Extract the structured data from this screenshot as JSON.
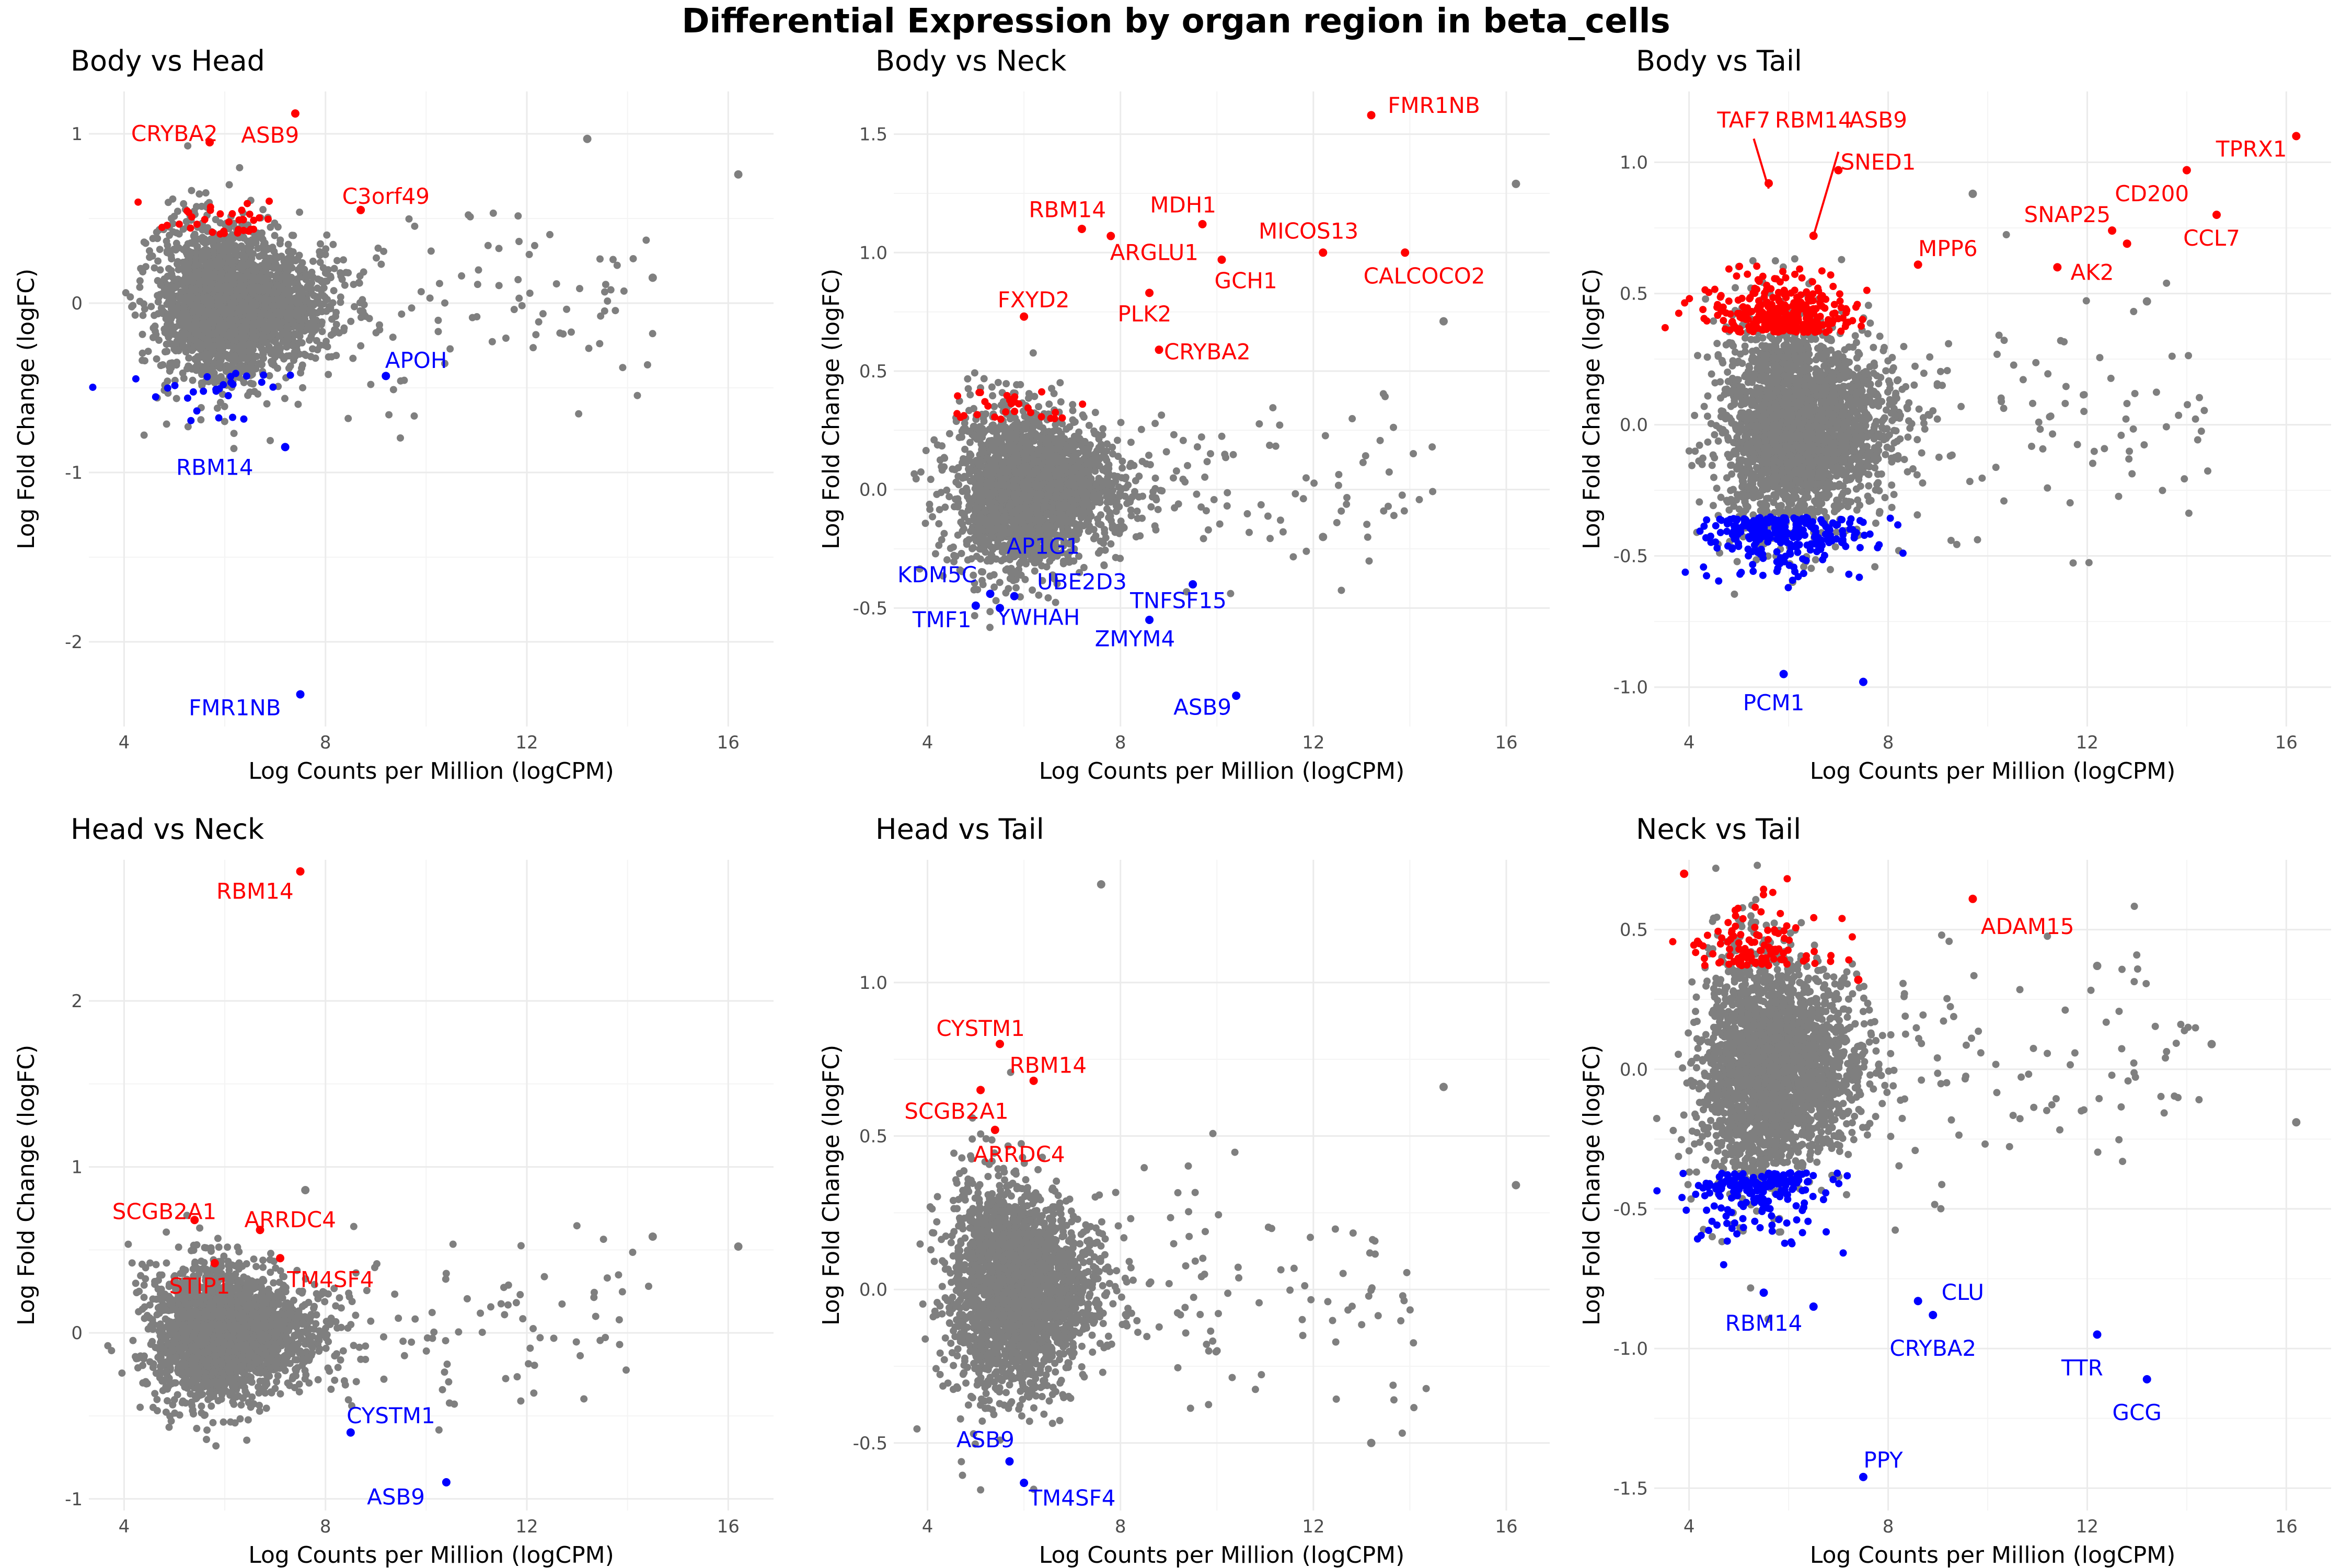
{
  "title": "Differential Expression by organ region in beta_cells",
  "colors": {
    "up": "#ff0000",
    "down": "#0000ff",
    "ns": "#7f7f7f",
    "grid": "#ebebeb"
  },
  "chart_data": [
    {
      "type": "scatter",
      "title": "Body vs Head",
      "xlabel": "Log Counts per Million (logCPM)",
      "ylabel": "Log Fold Change (logFC)",
      "xlim": [
        3.3,
        16.9
      ],
      "ylim": [
        -2.5,
        1.25
      ],
      "xticks": [
        4,
        8,
        12,
        16
      ],
      "yticks": [
        -2,
        -1,
        0,
        1
      ],
      "bulk": {
        "x_center": 5.9,
        "x_spread": 1.0,
        "y_center": 0.0,
        "y_spread": 0.22
      },
      "up_count": 35,
      "down_count": 28,
      "points": [
        {
          "x": 7.4,
          "y": 1.12,
          "group": "up"
        },
        {
          "x": 5.7,
          "y": 0.95,
          "group": "up"
        },
        {
          "x": 8.7,
          "y": 0.55,
          "group": "up"
        },
        {
          "x": 13.2,
          "y": 0.97,
          "group": "ns"
        },
        {
          "x": 16.2,
          "y": 0.76,
          "group": "ns"
        },
        {
          "x": 14.5,
          "y": 0.15,
          "group": "ns"
        },
        {
          "x": 9.2,
          "y": -0.43,
          "group": "down"
        },
        {
          "x": 7.2,
          "y": -0.85,
          "group": "down"
        },
        {
          "x": 7.5,
          "y": -2.31,
          "group": "down"
        }
      ],
      "labels": [
        {
          "text": "CRYBA2",
          "x": 5.0,
          "y": 1.0,
          "group": "up"
        },
        {
          "text": "ASB9",
          "x": 6.9,
          "y": 0.99,
          "group": "up"
        },
        {
          "text": "C3orf49",
          "x": 9.2,
          "y": 0.63,
          "group": "up"
        },
        {
          "text": "APOH",
          "x": 9.8,
          "y": -0.34,
          "group": "down"
        },
        {
          "text": "RBM14",
          "x": 5.8,
          "y": -0.97,
          "group": "down"
        },
        {
          "text": "FMR1NB",
          "x": 6.2,
          "y": -2.39,
          "group": "down"
        }
      ]
    },
    {
      "type": "scatter",
      "title": "Body vs Neck",
      "xlabel": "Log Counts per Million (logCPM)",
      "ylabel": "Log Fold Change (logFC)",
      "xlim": [
        3.3,
        16.9
      ],
      "ylim": [
        -1.0,
        1.68
      ],
      "xticks": [
        4,
        8,
        12,
        16
      ],
      "yticks": [
        -0.5,
        0.0,
        0.5,
        1.0,
        1.5
      ],
      "bulk": {
        "x_center": 5.8,
        "x_spread": 1.0,
        "y_center": 0.0,
        "y_spread": 0.16
      },
      "up_count": 30,
      "down_count": 0,
      "points": [
        {
          "x": 13.2,
          "y": 1.58,
          "group": "up"
        },
        {
          "x": 7.2,
          "y": 1.1,
          "group": "up"
        },
        {
          "x": 9.7,
          "y": 1.12,
          "group": "up"
        },
        {
          "x": 7.8,
          "y": 1.07,
          "group": "up"
        },
        {
          "x": 10.1,
          "y": 0.97,
          "group": "up"
        },
        {
          "x": 12.2,
          "y": 1.0,
          "group": "up"
        },
        {
          "x": 13.9,
          "y": 1.0,
          "group": "up"
        },
        {
          "x": 6.0,
          "y": 0.73,
          "group": "up"
        },
        {
          "x": 8.6,
          "y": 0.83,
          "group": "up"
        },
        {
          "x": 8.8,
          "y": 0.59,
          "group": "up"
        },
        {
          "x": 16.2,
          "y": 1.29,
          "group": "ns"
        },
        {
          "x": 14.7,
          "y": 0.71,
          "group": "ns"
        },
        {
          "x": 12.2,
          "y": -0.2,
          "group": "ns"
        },
        {
          "x": 5.3,
          "y": -0.44,
          "group": "down"
        },
        {
          "x": 5.8,
          "y": -0.45,
          "group": "down"
        },
        {
          "x": 5.0,
          "y": -0.49,
          "group": "down"
        },
        {
          "x": 5.5,
          "y": -0.5,
          "group": "down"
        },
        {
          "x": 9.5,
          "y": -0.4,
          "group": "down"
        },
        {
          "x": 8.6,
          "y": -0.55,
          "group": "down"
        },
        {
          "x": 10.4,
          "y": -0.87,
          "group": "down"
        }
      ],
      "labels": [
        {
          "text": "FMR1NB",
          "x": 14.5,
          "y": 1.62,
          "group": "up"
        },
        {
          "text": "RBM14",
          "x": 6.9,
          "y": 1.18,
          "group": "up"
        },
        {
          "text": "MDH1",
          "x": 9.3,
          "y": 1.2,
          "group": "up"
        },
        {
          "text": "MICOS13",
          "x": 11.9,
          "y": 1.09,
          "group": "up"
        },
        {
          "text": "ARGLU1",
          "x": 8.7,
          "y": 1.0,
          "group": "up"
        },
        {
          "text": "GCH1",
          "x": 10.6,
          "y": 0.88,
          "group": "up"
        },
        {
          "text": "CALCOCO2",
          "x": 14.3,
          "y": 0.9,
          "group": "up"
        },
        {
          "text": "FXYD2",
          "x": 6.2,
          "y": 0.8,
          "group": "up"
        },
        {
          "text": "PLK2",
          "x": 8.5,
          "y": 0.74,
          "group": "up"
        },
        {
          "text": "CRYBA2",
          "x": 9.8,
          "y": 0.58,
          "group": "up"
        },
        {
          "text": "AP1G1",
          "x": 6.4,
          "y": -0.24,
          "group": "down"
        },
        {
          "text": "KDM5C",
          "x": 4.2,
          "y": -0.36,
          "group": "down"
        },
        {
          "text": "UBE2D3",
          "x": 7.2,
          "y": -0.39,
          "group": "down"
        },
        {
          "text": "TNFSF15",
          "x": 9.2,
          "y": -0.47,
          "group": "down"
        },
        {
          "text": "TMF1",
          "x": 4.3,
          "y": -0.55,
          "group": "down"
        },
        {
          "text": "YWHAH",
          "x": 6.3,
          "y": -0.54,
          "group": "down"
        },
        {
          "text": "ZMYM4",
          "x": 8.3,
          "y": -0.63,
          "group": "down"
        },
        {
          "text": "ASB9",
          "x": 9.7,
          "y": -0.92,
          "group": "down"
        }
      ]
    },
    {
      "type": "scatter",
      "title": "Body vs Tail",
      "xlabel": "Log Counts per Million (logCPM)",
      "ylabel": "Log Fold Change (logFC)",
      "xlim": [
        3.3,
        16.9
      ],
      "ylim": [
        -1.15,
        1.27
      ],
      "xticks": [
        4,
        8,
        12,
        16
      ],
      "yticks": [
        -1.0,
        -0.5,
        0.0,
        0.5,
        1.0
      ],
      "bulk": {
        "x_center": 5.9,
        "x_spread": 1.0,
        "y_center": 0.0,
        "y_spread": 0.19
      },
      "up_count": 320,
      "down_count": 260,
      "points": [
        {
          "x": 16.2,
          "y": 1.1,
          "group": "up"
        },
        {
          "x": 14.0,
          "y": 0.97,
          "group": "up"
        },
        {
          "x": 14.6,
          "y": 0.8,
          "group": "up"
        },
        {
          "x": 12.5,
          "y": 0.74,
          "group": "up"
        },
        {
          "x": 12.8,
          "y": 0.69,
          "group": "up"
        },
        {
          "x": 11.4,
          "y": 0.6,
          "group": "up"
        },
        {
          "x": 8.6,
          "y": 0.61,
          "group": "up"
        },
        {
          "x": 7.0,
          "y": 0.97,
          "group": "up"
        },
        {
          "x": 5.6,
          "y": 0.92,
          "group": "up"
        },
        {
          "x": 6.5,
          "y": 0.72,
          "group": "up"
        },
        {
          "x": 9.7,
          "y": 0.88,
          "group": "ns"
        },
        {
          "x": 13.2,
          "y": 0.47,
          "group": "ns"
        },
        {
          "x": 5.9,
          "y": -0.95,
          "group": "down"
        },
        {
          "x": 7.5,
          "y": -0.98,
          "group": "down"
        }
      ],
      "labels": [
        {
          "text": "TAF7",
          "x": 5.1,
          "y": 1.16,
          "group": "up"
        },
        {
          "text": "RBM14",
          "x": 6.5,
          "y": 1.16,
          "group": "up"
        },
        {
          "text": "ASB9",
          "x": 7.8,
          "y": 1.16,
          "group": "up"
        },
        {
          "text": "TPRX1",
          "x": 15.3,
          "y": 1.05,
          "group": "up"
        },
        {
          "text": "SNED1",
          "x": 7.8,
          "y": 1.0,
          "group": "up"
        },
        {
          "text": "CD200",
          "x": 13.3,
          "y": 0.88,
          "group": "up"
        },
        {
          "text": "SNAP25",
          "x": 11.6,
          "y": 0.8,
          "group": "up"
        },
        {
          "text": "CCL7",
          "x": 14.5,
          "y": 0.71,
          "group": "up"
        },
        {
          "text": "MPP6",
          "x": 9.2,
          "y": 0.67,
          "group": "up"
        },
        {
          "text": "AK2",
          "x": 12.1,
          "y": 0.58,
          "group": "up"
        },
        {
          "text": "PCM1",
          "x": 5.7,
          "y": -1.06,
          "group": "down"
        }
      ],
      "leaders": [
        {
          "text": "TAF7",
          "x1": 5.3,
          "y1": 1.09,
          "x2": 5.6,
          "y2": 0.9
        },
        {
          "text": "SNED1",
          "x1": 7.0,
          "y1": 1.04,
          "x2": 6.5,
          "y2": 0.72
        }
      ]
    },
    {
      "type": "scatter",
      "title": "Head vs Neck",
      "xlabel": "Log Counts per Million (logCPM)",
      "ylabel": "Log Fold Change (logFC)",
      "xlim": [
        3.3,
        16.9
      ],
      "ylim": [
        -1.07,
        2.85
      ],
      "xticks": [
        4,
        8,
        12,
        16
      ],
      "yticks": [
        -1,
        0,
        1,
        2
      ],
      "bulk": {
        "x_center": 5.7,
        "x_spread": 0.95,
        "y_center": 0.0,
        "y_spread": 0.2
      },
      "up_count": 0,
      "down_count": 0,
      "points": [
        {
          "x": 7.5,
          "y": 2.78,
          "group": "up"
        },
        {
          "x": 5.4,
          "y": 0.68,
          "group": "up"
        },
        {
          "x": 6.7,
          "y": 0.62,
          "group": "up"
        },
        {
          "x": 5.8,
          "y": 0.42,
          "group": "up"
        },
        {
          "x": 7.1,
          "y": 0.45,
          "group": "up"
        },
        {
          "x": 8.5,
          "y": -0.6,
          "group": "down"
        },
        {
          "x": 10.4,
          "y": -0.9,
          "group": "down"
        },
        {
          "x": 16.2,
          "y": 0.52,
          "group": "ns"
        },
        {
          "x": 14.5,
          "y": 0.58,
          "group": "ns"
        },
        {
          "x": 7.6,
          "y": 0.86,
          "group": "ns"
        }
      ],
      "labels": [
        {
          "text": "RBM14",
          "x": 6.6,
          "y": 2.66,
          "group": "up"
        },
        {
          "text": "SCGB2A1",
          "x": 4.8,
          "y": 0.73,
          "group": "up"
        },
        {
          "text": "ARRDC4",
          "x": 7.3,
          "y": 0.68,
          "group": "up"
        },
        {
          "text": "STIP1",
          "x": 5.5,
          "y": 0.28,
          "group": "up"
        },
        {
          "text": "TM4SF4",
          "x": 8.1,
          "y": 0.32,
          "group": "up"
        },
        {
          "text": "CYSTM1",
          "x": 9.3,
          "y": -0.5,
          "group": "down"
        },
        {
          "text": "ASB9",
          "x": 9.4,
          "y": -0.99,
          "group": "down"
        }
      ]
    },
    {
      "type": "scatter",
      "title": "Head vs Tail",
      "xlabel": "Log Counts per Million (logCPM)",
      "ylabel": "Log Fold Change (logFC)",
      "xlim": [
        3.3,
        16.9
      ],
      "ylim": [
        -0.72,
        1.4
      ],
      "xticks": [
        4,
        8,
        12,
        16
      ],
      "yticks": [
        -0.5,
        0.0,
        0.5,
        1.0
      ],
      "bulk": {
        "x_center": 5.6,
        "x_spread": 0.9,
        "y_center": 0.0,
        "y_spread": 0.17
      },
      "up_count": 0,
      "down_count": 0,
      "points": [
        {
          "x": 5.5,
          "y": 0.8,
          "group": "up"
        },
        {
          "x": 6.2,
          "y": 0.68,
          "group": "up"
        },
        {
          "x": 5.1,
          "y": 0.65,
          "group": "up"
        },
        {
          "x": 5.4,
          "y": 0.52,
          "group": "up"
        },
        {
          "x": 5.7,
          "y": -0.56,
          "group": "down"
        },
        {
          "x": 6.0,
          "y": -0.63,
          "group": "down"
        },
        {
          "x": 7.6,
          "y": 1.32,
          "group": "ns"
        },
        {
          "x": 16.2,
          "y": 0.34,
          "group": "ns"
        },
        {
          "x": 13.2,
          "y": -0.5,
          "group": "ns"
        },
        {
          "x": 14.7,
          "y": 0.66,
          "group": "ns"
        }
      ],
      "labels": [
        {
          "text": "CYSTM1",
          "x": 5.1,
          "y": 0.85,
          "group": "up"
        },
        {
          "text": "RBM14",
          "x": 6.5,
          "y": 0.73,
          "group": "up"
        },
        {
          "text": "SCGB2A1",
          "x": 4.6,
          "y": 0.58,
          "group": "up"
        },
        {
          "text": "ARRDC4",
          "x": 5.9,
          "y": 0.44,
          "group": "up"
        },
        {
          "text": "ASB9",
          "x": 5.2,
          "y": -0.49,
          "group": "down"
        },
        {
          "text": "TM4SF4",
          "x": 7.0,
          "y": -0.68,
          "group": "down"
        }
      ]
    },
    {
      "type": "scatter",
      "title": "Neck vs Tail",
      "xlabel": "Log Counts per Million (logCPM)",
      "ylabel": "Log Fold Change (logFC)",
      "xlim": [
        3.3,
        16.9
      ],
      "ylim": [
        -1.58,
        0.75
      ],
      "xticks": [
        4,
        8,
        12,
        16
      ],
      "yticks": [
        -1.5,
        -1.0,
        -0.5,
        0.0,
        0.5
      ],
      "bulk": {
        "x_center": 5.4,
        "x_spread": 0.95,
        "y_center": 0.0,
        "y_spread": 0.2
      },
      "up_count": 110,
      "down_count": 190,
      "points": [
        {
          "x": 3.9,
          "y": 0.7,
          "group": "up"
        },
        {
          "x": 9.7,
          "y": 0.61,
          "group": "up"
        },
        {
          "x": 7.4,
          "y": 0.32,
          "group": "up"
        },
        {
          "x": 12.2,
          "y": -0.95,
          "group": "down"
        },
        {
          "x": 13.2,
          "y": -1.11,
          "group": "down"
        },
        {
          "x": 7.5,
          "y": -1.46,
          "group": "down"
        },
        {
          "x": 8.6,
          "y": -0.83,
          "group": "down"
        },
        {
          "x": 8.9,
          "y": -0.88,
          "group": "down"
        },
        {
          "x": 6.5,
          "y": -0.85,
          "group": "down"
        },
        {
          "x": 5.5,
          "y": -0.8,
          "group": "down"
        },
        {
          "x": 16.2,
          "y": -0.19,
          "group": "ns"
        },
        {
          "x": 14.5,
          "y": 0.09,
          "group": "ns"
        },
        {
          "x": 12.2,
          "y": 0.37,
          "group": "ns"
        }
      ],
      "labels": [
        {
          "text": "ADAM15",
          "x": 10.8,
          "y": 0.51,
          "group": "up"
        },
        {
          "text": "RBM14",
          "x": 5.5,
          "y": -0.91,
          "group": "down"
        },
        {
          "text": "CLU",
          "x": 9.5,
          "y": -0.8,
          "group": "down"
        },
        {
          "text": "CRYBA2",
          "x": 8.9,
          "y": -1.0,
          "group": "down"
        },
        {
          "text": "TTR",
          "x": 11.9,
          "y": -1.07,
          "group": "down"
        },
        {
          "text": "GCG",
          "x": 13.0,
          "y": -1.23,
          "group": "down"
        },
        {
          "text": "PPY",
          "x": 7.9,
          "y": -1.4,
          "group": "down"
        }
      ]
    }
  ]
}
